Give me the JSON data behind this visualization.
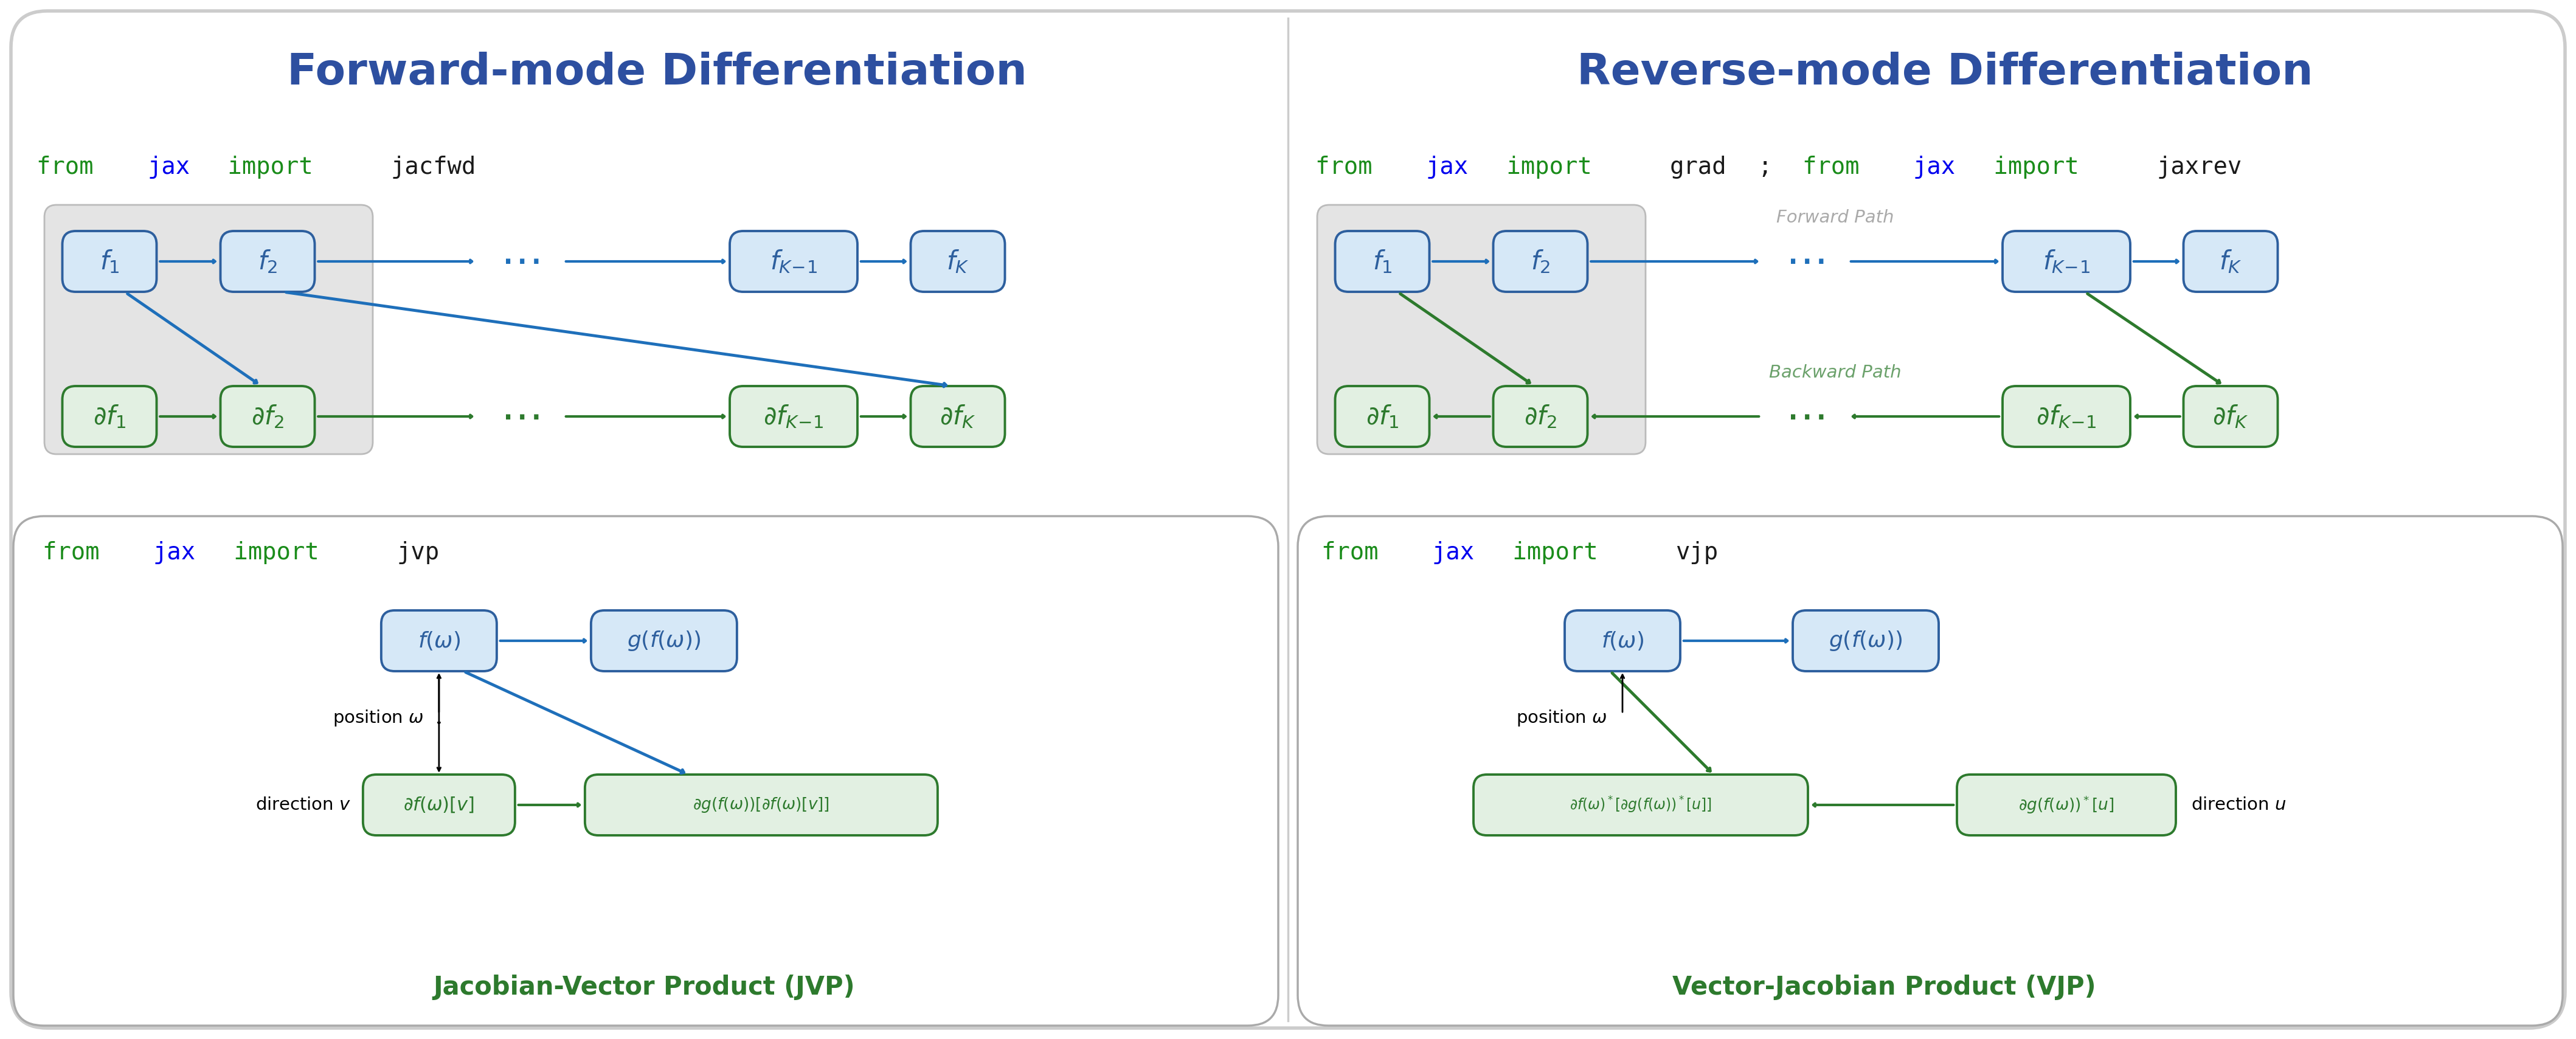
{
  "fig_width": 42.36,
  "fig_height": 17.09,
  "bg_color": "#ffffff",
  "box_blue_face": "#d6e8f7",
  "box_blue_edge": "#2d5f9e",
  "box_green_face": "#e2f0e2",
  "box_green_edge": "#2d7a2d",
  "arrow_blue": "#1e6fba",
  "arrow_green": "#2d7a2d",
  "title_color": "#2d4fa0",
  "green_text": "#1a8c1a",
  "blue_text": "#0000ee",
  "black_text": "#1a1a1a",
  "gray_text": "#aaaaaa",
  "forward_title": "Forward-mode Differentiation",
  "reverse_title": "Reverse-mode Differentiation",
  "jvp_subtitle": "Jacobian-Vector Product (JVP)",
  "vjp_subtitle": "Vector-Jacobian Product (VJP)"
}
